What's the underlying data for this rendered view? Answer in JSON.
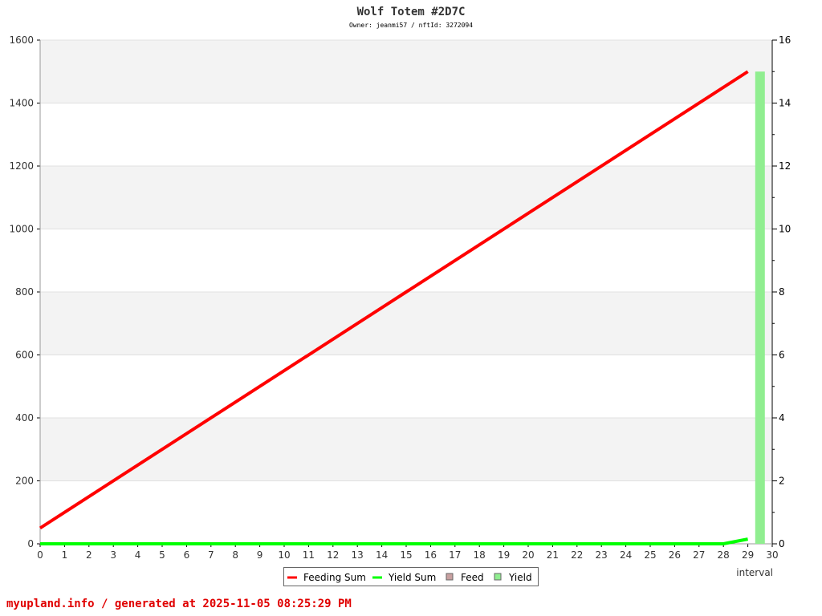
{
  "chart_data": {
    "type": "line",
    "title": "Wolf Totem #2D7C",
    "subtitle": "Owner: jeanmi57 / nftId: 3272094",
    "xlabel": "interval",
    "xlim": [
      0,
      30
    ],
    "ylim_left": [
      0,
      1600
    ],
    "ylim_right": [
      0,
      16
    ],
    "x_ticks": [
      0,
      1,
      2,
      3,
      4,
      5,
      6,
      7,
      8,
      9,
      10,
      11,
      12,
      13,
      14,
      15,
      16,
      17,
      18,
      19,
      20,
      21,
      22,
      23,
      24,
      25,
      26,
      27,
      28,
      29,
      30
    ],
    "y_ticks_left": [
      0,
      200,
      400,
      600,
      800,
      1000,
      1200,
      1400,
      1600
    ],
    "y_ticks_right": [
      0,
      2,
      4,
      6,
      8,
      10,
      12,
      14,
      16
    ],
    "grid": true,
    "legend_placement": "bottom",
    "series": [
      {
        "name": "Feeding Sum",
        "axis": "left",
        "color": "#ff0000",
        "x": [
          0,
          29
        ],
        "values": [
          50,
          1500
        ]
      },
      {
        "name": "Yield Sum",
        "axis": "left",
        "color": "#00ff00",
        "x": [
          0,
          28,
          29
        ],
        "values": [
          0,
          0,
          15
        ]
      },
      {
        "name": "Feed",
        "axis": "right",
        "type": "bar",
        "color": "#c8a0a0",
        "x": [],
        "values": []
      },
      {
        "name": "Yield",
        "axis": "right",
        "type": "bar",
        "color": "#90ee90",
        "x": [
          29.5
        ],
        "values": [
          15
        ]
      }
    ]
  },
  "footer": "myupland.info / generated at 2025-11-05 08:25:29 PM"
}
